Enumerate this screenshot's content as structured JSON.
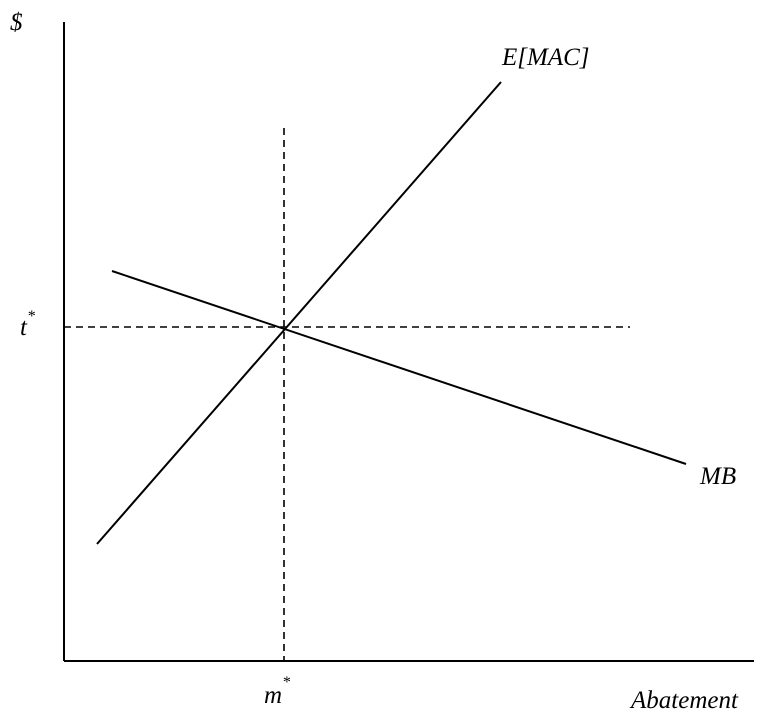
{
  "labels": {
    "y_axis": "$",
    "x_axis": "Abatement",
    "mac_curve": "E[MAC]",
    "mb_curve": "MB",
    "t_base": "t",
    "m_base": "m",
    "star": "*"
  }
}
